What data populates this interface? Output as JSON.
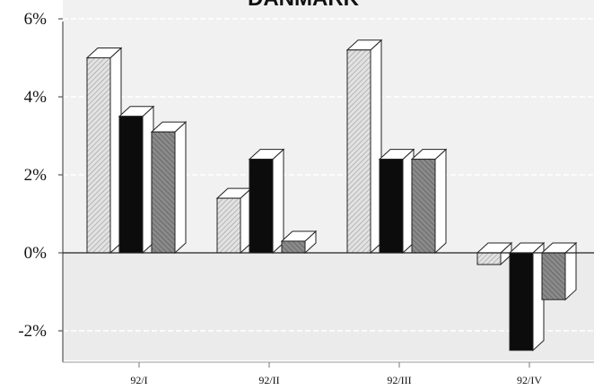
{
  "chart_data": {
    "type": "bar",
    "title": "DANMARK",
    "categories": [
      "92/I",
      "92/II",
      "92/III",
      "92/IV"
    ],
    "series": [
      {
        "values": [
          5.0,
          1.4,
          5.2,
          -0.3
        ]
      },
      {
        "values": [
          3.5,
          2.4,
          2.4,
          -2.5
        ]
      },
      {
        "values": [
          3.1,
          0.3,
          2.4,
          -1.2
        ]
      }
    ],
    "ylim": [
      -2.6,
      6
    ],
    "yticks": [
      {
        "value": 6,
        "label": "6%"
      },
      {
        "value": 4,
        "label": "4%"
      },
      {
        "value": 2,
        "label": "2%"
      },
      {
        "value": 0,
        "label": "0%"
      },
      {
        "value": -2,
        "label": "-2%"
      }
    ],
    "xlabel": "",
    "ylabel": "",
    "grid": true,
    "series_colors": [
      "#d2d2d2",
      "#0c0c0c",
      "#7c7c7c"
    ]
  }
}
